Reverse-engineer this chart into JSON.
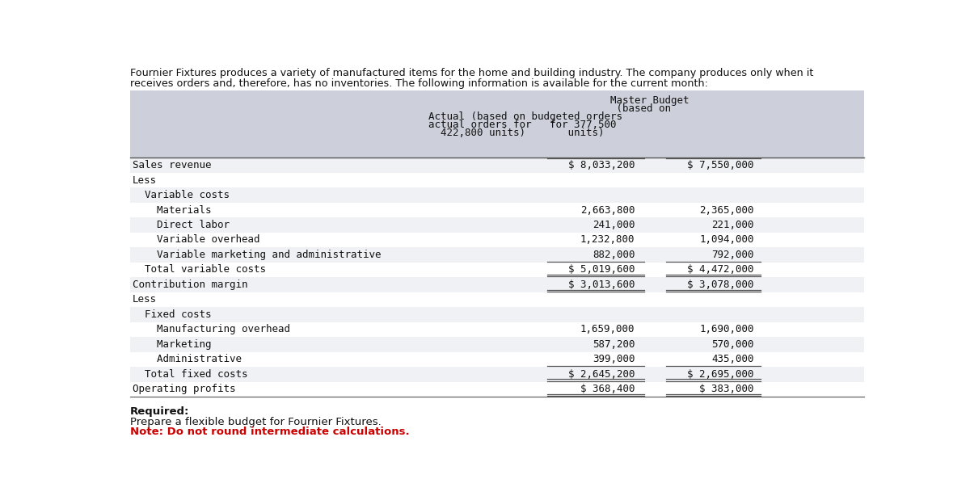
{
  "intro_line1": "Fournier Fixtures produces a variety of manufactured items for the home and building industry. The company produces only when it",
  "intro_line2": "receives orders and, therefore, has no inventories. The following information is available for the current month:",
  "header_lines": [
    "                              Master Budget",
    "                               (based on",
    "Actual (based on budgeted orders",
    "actual orders for   for 377,500",
    "  422,800 units)       units)"
  ],
  "rows": [
    {
      "label": "Sales revenue",
      "indent": 0,
      "col1": "$ 8,033,200",
      "col2": "$ 7,550,000",
      "line_above": true,
      "line_below": false,
      "dollar": true,
      "bg": "light"
    },
    {
      "label": "Less",
      "indent": 0,
      "col1": "",
      "col2": "",
      "line_above": false,
      "line_below": false,
      "dollar": false,
      "bg": "white"
    },
    {
      "label": "  Variable costs",
      "indent": 0,
      "col1": "",
      "col2": "",
      "line_above": false,
      "line_below": false,
      "dollar": false,
      "bg": "light"
    },
    {
      "label": "    Materials",
      "indent": 0,
      "col1": "2,663,800",
      "col2": "2,365,000",
      "line_above": false,
      "line_below": false,
      "dollar": false,
      "bg": "white"
    },
    {
      "label": "    Direct labor",
      "indent": 0,
      "col1": "241,000",
      "col2": "221,000",
      "line_above": false,
      "line_below": false,
      "dollar": false,
      "bg": "light"
    },
    {
      "label": "    Variable overhead",
      "indent": 0,
      "col1": "1,232,800",
      "col2": "1,094,000",
      "line_above": false,
      "line_below": false,
      "dollar": false,
      "bg": "white"
    },
    {
      "label": "    Variable marketing and administrative",
      "indent": 0,
      "col1": "882,000",
      "col2": "792,000",
      "line_above": false,
      "line_below": true,
      "dollar": false,
      "bg": "light"
    },
    {
      "label": "  Total variable costs",
      "indent": 0,
      "col1": "$ 5,019,600",
      "col2": "$ 4,472,000",
      "line_above": false,
      "line_below": true,
      "dollar": true,
      "bg": "white"
    },
    {
      "label": "Contribution margin",
      "indent": 0,
      "col1": "$ 3,013,600",
      "col2": "$ 3,078,000",
      "line_above": false,
      "line_below": true,
      "dollar": true,
      "bg": "light"
    },
    {
      "label": "Less",
      "indent": 0,
      "col1": "",
      "col2": "",
      "line_above": false,
      "line_below": false,
      "dollar": false,
      "bg": "white"
    },
    {
      "label": "  Fixed costs",
      "indent": 0,
      "col1": "",
      "col2": "",
      "line_above": false,
      "line_below": false,
      "dollar": false,
      "bg": "light"
    },
    {
      "label": "    Manufacturing overhead",
      "indent": 0,
      "col1": "1,659,000",
      "col2": "1,690,000",
      "line_above": false,
      "line_below": false,
      "dollar": false,
      "bg": "white"
    },
    {
      "label": "    Marketing",
      "indent": 0,
      "col1": "587,200",
      "col2": "570,000",
      "line_above": false,
      "line_below": false,
      "dollar": false,
      "bg": "light"
    },
    {
      "label": "    Administrative",
      "indent": 0,
      "col1": "399,000",
      "col2": "435,000",
      "line_above": false,
      "line_below": true,
      "dollar": false,
      "bg": "white"
    },
    {
      "label": "  Total fixed costs",
      "indent": 0,
      "col1": "$ 2,645,200",
      "col2": "$ 2,695,000",
      "line_above": false,
      "line_below": true,
      "dollar": true,
      "bg": "light"
    },
    {
      "label": "Operating profits",
      "indent": 0,
      "col1": "$ 368,400",
      "col2": "$ 383,000",
      "line_above": false,
      "line_below": true,
      "dollar": true,
      "bg": "white"
    }
  ],
  "required_label": "Required:",
  "required_text": "Prepare a flexible budget for Fournier Fixtures.",
  "required_note": "Note: Do not round intermediate calculations.",
  "header_bg": "#cdd0da",
  "light_bg": "#f0f1f4",
  "white_bg": "#ffffff",
  "text_color": "#111111",
  "note_color": "#cc0000",
  "line_color": "#555555"
}
